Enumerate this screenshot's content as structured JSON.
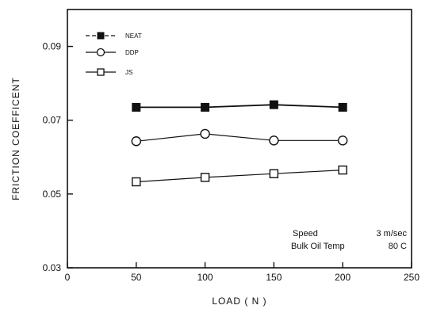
{
  "chart_data": {
    "type": "line",
    "xlabel": "LOAD ( N )",
    "ylabel": "FRICTION  COEFFICENT",
    "xlim": [
      0,
      250
    ],
    "ylim": [
      0.03,
      0.1
    ],
    "x_ticks": [
      0,
      50,
      100,
      150,
      200,
      250
    ],
    "y_ticks": [
      0.03,
      0.05,
      0.07,
      0.09
    ],
    "x_tick_labels": [
      "0",
      "50",
      "100",
      "150",
      "200",
      "250"
    ],
    "y_tick_labels": [
      "0.03",
      "0.05",
      "0.07",
      "0.09"
    ],
    "grid": false,
    "legend_position": "top-left",
    "series": [
      {
        "name": "NEAT",
        "marker": "filled-square",
        "line_style": "dashed",
        "x": [
          50,
          100,
          150,
          200
        ],
        "y": [
          0.0735,
          0.0735,
          0.0742,
          0.0735
        ]
      },
      {
        "name": "DDP",
        "marker": "open-circle",
        "line_style": "solid",
        "x": [
          50,
          100,
          150,
          200
        ],
        "y": [
          0.0643,
          0.0663,
          0.0645,
          0.0645
        ]
      },
      {
        "name": "JS",
        "marker": "open-square",
        "line_style": "solid",
        "x": [
          50,
          100,
          150,
          200
        ],
        "y": [
          0.0533,
          0.0545,
          0.0555,
          0.0565
        ]
      }
    ],
    "annotations": [
      {
        "line1_label": "Speed",
        "line1_value": "3 m/sec"
      },
      {
        "line2_label": "Bulk Oil Temp",
        "line2_value": "80 C"
      }
    ]
  },
  "colors": {
    "ink": "#111111",
    "background": "#ffffff"
  }
}
